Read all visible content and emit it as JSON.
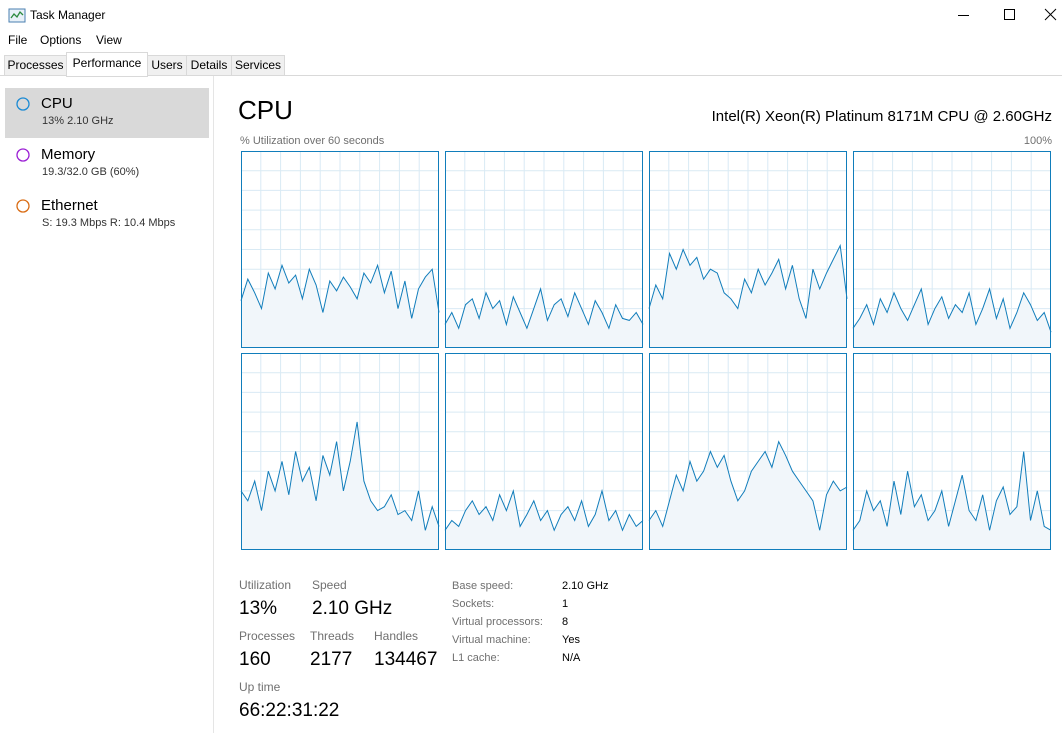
{
  "window": {
    "title": "Task Manager"
  },
  "menu": [
    "File",
    "Options",
    "View"
  ],
  "tabs": [
    "Processes",
    "Performance",
    "Users",
    "Details",
    "Services"
  ],
  "sidebar": [
    {
      "name": "CPU",
      "detail": "13%  2.10 GHz",
      "color": "#1a8ad4"
    },
    {
      "name": "Memory",
      "detail": "19.3/32.0 GB (60%)",
      "color": "#9b1fd4"
    },
    {
      "name": "Ethernet",
      "detail": "S: 19.3 Mbps  R: 10.4 Mbps",
      "color": "#d96c14"
    }
  ],
  "header": {
    "title": "CPU",
    "model": "Intel(R) Xeon(R) Platinum 8171M CPU @ 2.60GHz"
  },
  "graph": {
    "caption": "% Utilization over 60 seconds",
    "max_label": "100%",
    "ylim": [
      0,
      100
    ],
    "color": "#117dbb",
    "fill": "#f1f6fa",
    "cores": [
      [
        24,
        35,
        28,
        20,
        38,
        30,
        42,
        33,
        37,
        25,
        40,
        32,
        18,
        34,
        29,
        36,
        31,
        25,
        38,
        33,
        42,
        28,
        39,
        20,
        34,
        15,
        30,
        36,
        40,
        18
      ],
      [
        12,
        18,
        10,
        22,
        25,
        15,
        28,
        20,
        24,
        12,
        26,
        18,
        10,
        20,
        30,
        14,
        22,
        25,
        16,
        28,
        20,
        12,
        24,
        18,
        10,
        22,
        15,
        14,
        18,
        12
      ],
      [
        20,
        32,
        25,
        48,
        40,
        50,
        42,
        46,
        35,
        40,
        38,
        28,
        25,
        20,
        35,
        28,
        40,
        32,
        38,
        45,
        30,
        42,
        25,
        15,
        40,
        30,
        38,
        45,
        52,
        25
      ],
      [
        10,
        15,
        22,
        12,
        25,
        18,
        28,
        20,
        14,
        22,
        30,
        12,
        20,
        26,
        15,
        22,
        18,
        28,
        12,
        20,
        30,
        15,
        25,
        10,
        18,
        28,
        22,
        14,
        18,
        8
      ],
      [
        30,
        25,
        35,
        20,
        40,
        30,
        45,
        28,
        50,
        35,
        42,
        25,
        48,
        38,
        55,
        30,
        45,
        65,
        35,
        25,
        20,
        22,
        28,
        18,
        20,
        15,
        30,
        10,
        22,
        12
      ],
      [
        10,
        15,
        12,
        20,
        25,
        18,
        22,
        15,
        28,
        20,
        30,
        12,
        18,
        25,
        15,
        20,
        10,
        18,
        22,
        15,
        25,
        12,
        18,
        30,
        15,
        20,
        10,
        18,
        12,
        15
      ],
      [
        15,
        20,
        12,
        25,
        38,
        30,
        45,
        35,
        40,
        50,
        42,
        48,
        35,
        25,
        30,
        40,
        45,
        50,
        42,
        55,
        48,
        40,
        35,
        30,
        25,
        10,
        28,
        35,
        30,
        32
      ],
      [
        10,
        15,
        30,
        20,
        25,
        12,
        35,
        18,
        40,
        22,
        28,
        15,
        20,
        30,
        12,
        25,
        38,
        20,
        15,
        28,
        10,
        25,
        32,
        18,
        22,
        50,
        15,
        30,
        12,
        10
      ]
    ]
  },
  "stats": [
    [
      {
        "label": "Utilization",
        "value": "13%"
      },
      {
        "label": "Speed",
        "value": "2.10 GHz"
      }
    ],
    [
      {
        "label": "Processes",
        "value": 160
      },
      {
        "label": "Threads",
        "value": 2177
      },
      {
        "label": "Handles",
        "value": 134467
      }
    ],
    [
      {
        "label": "Up time",
        "value": "66:22:31:22"
      }
    ]
  ],
  "details": [
    [
      "Base speed:",
      "2.10 GHz"
    ],
    [
      "Sockets:",
      "1"
    ],
    [
      "Virtual processors:",
      "8"
    ],
    [
      "Virtual machine:",
      "Yes"
    ],
    [
      "L1 cache:",
      "N/A"
    ]
  ]
}
